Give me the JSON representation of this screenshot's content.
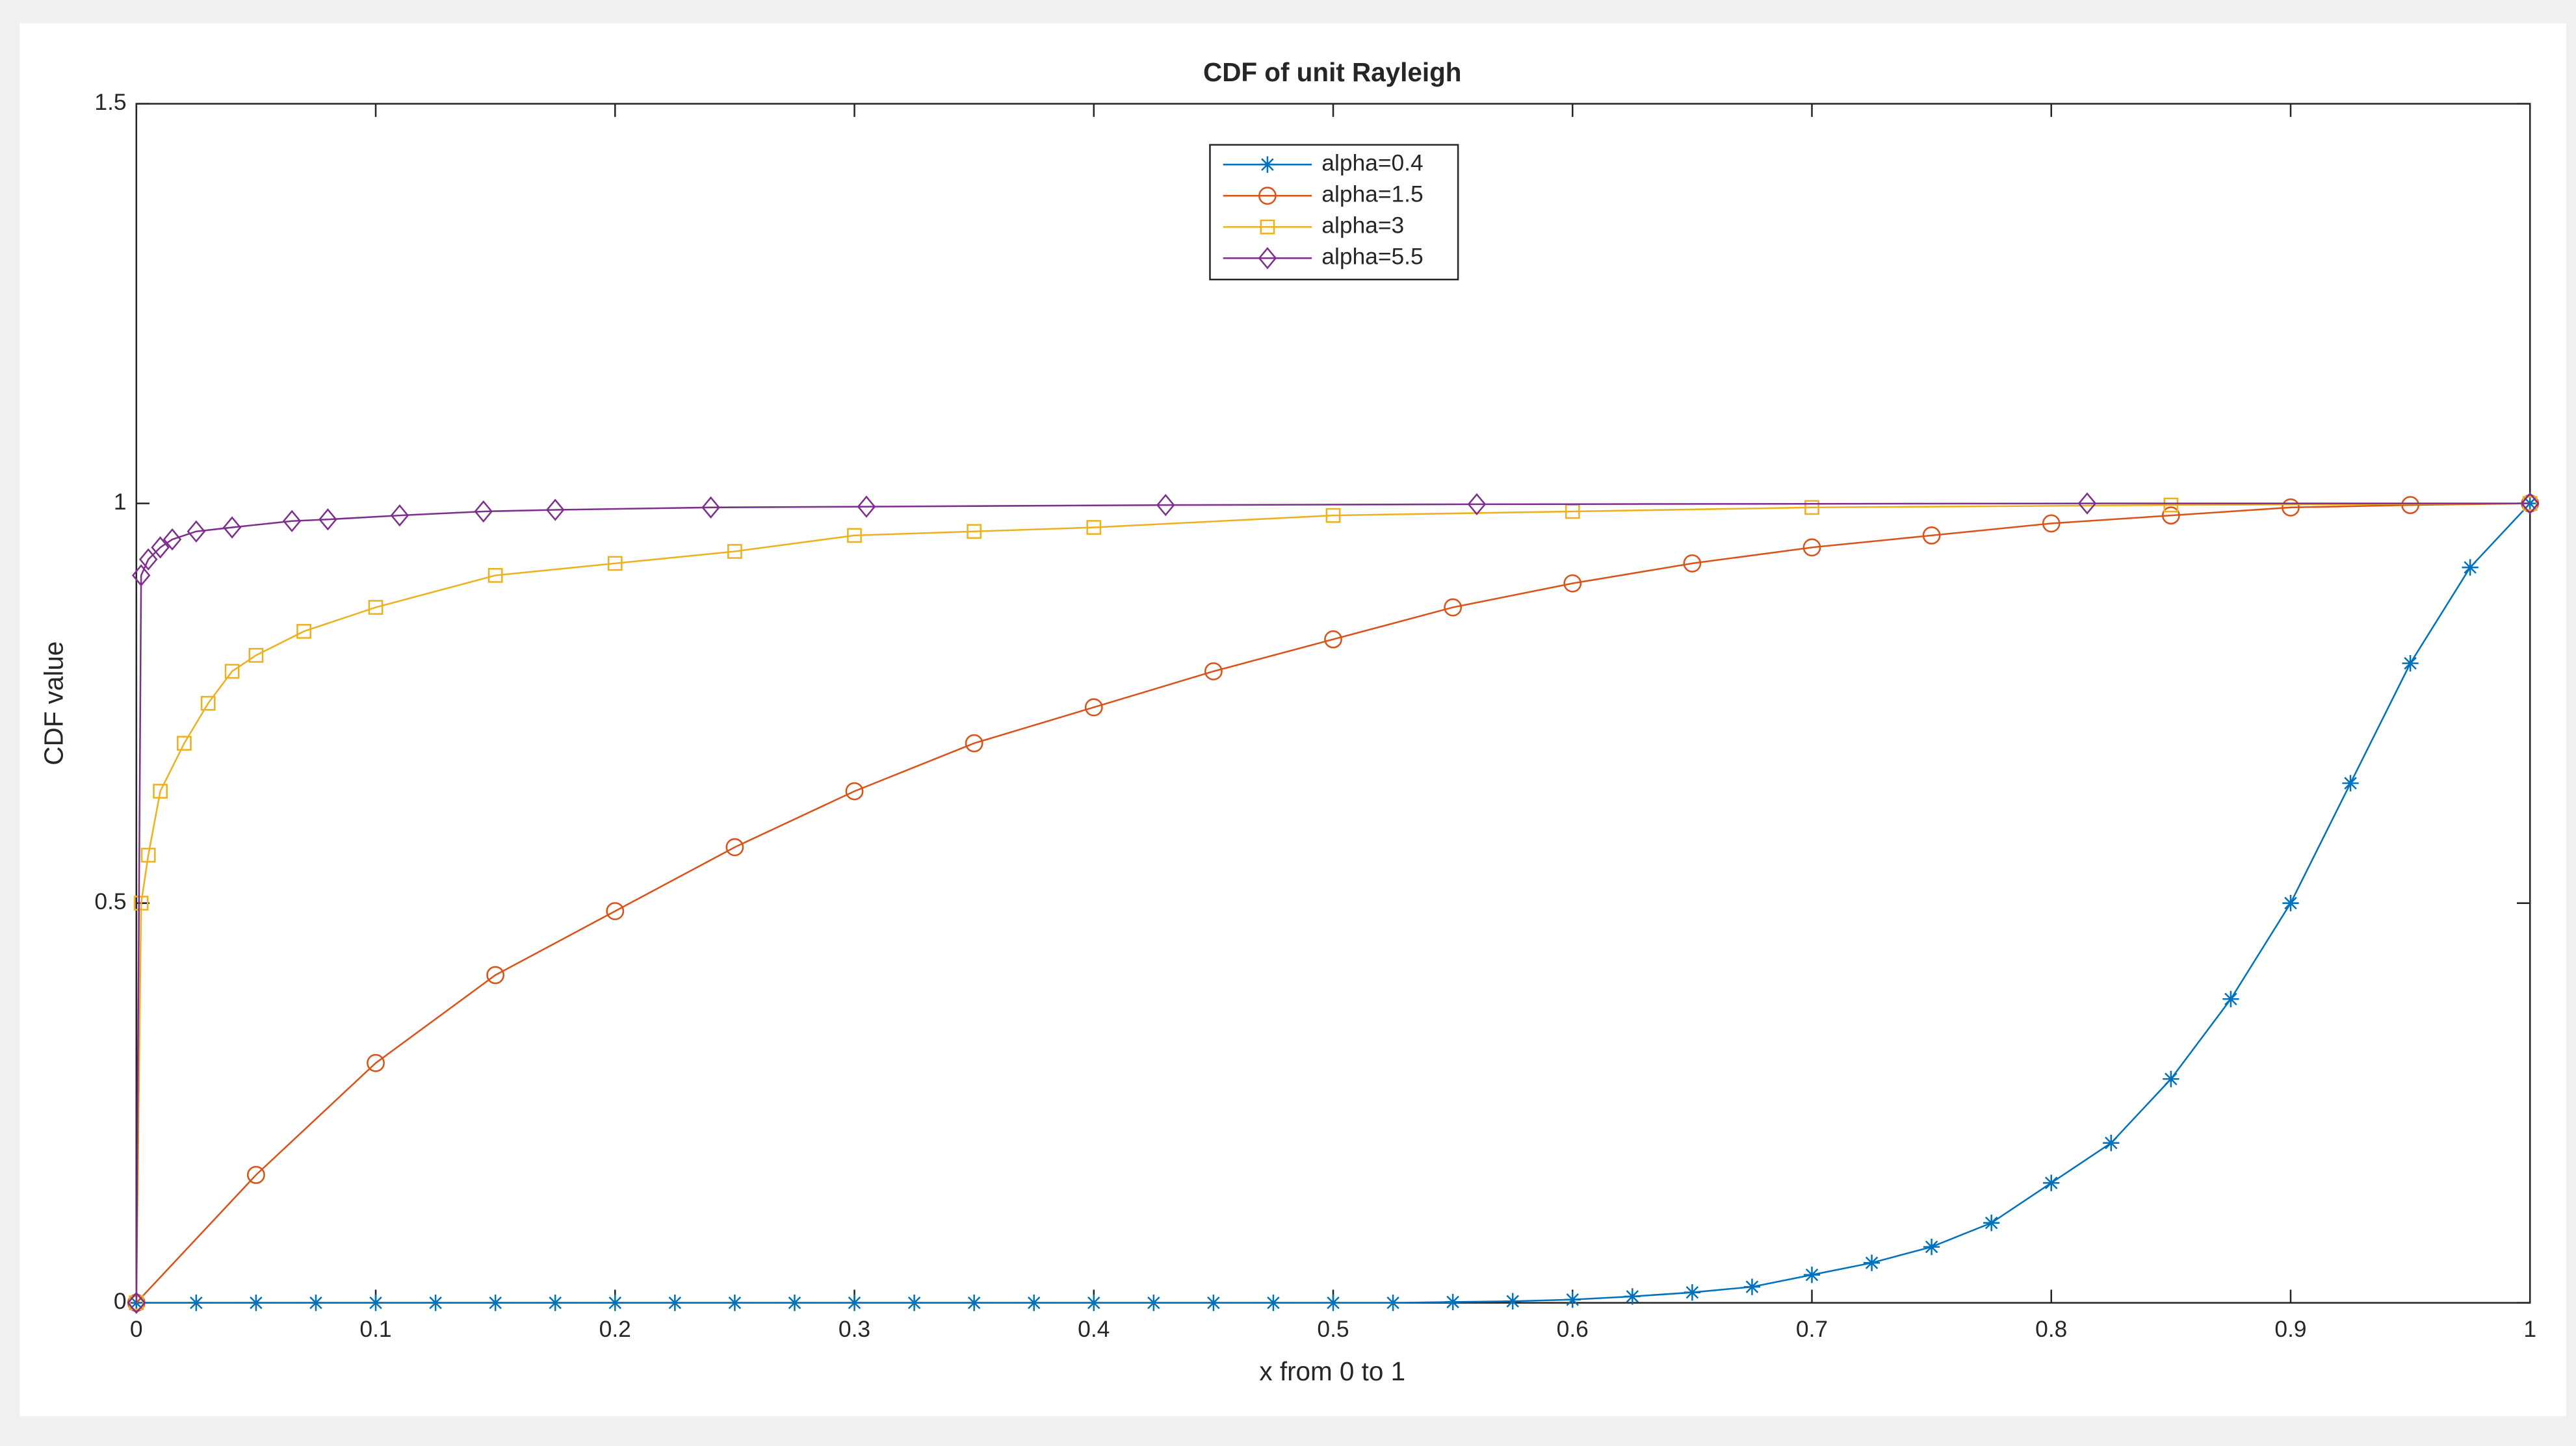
{
  "chart_data": {
    "type": "line",
    "title": "CDF of unit Rayleigh",
    "x_label": "x from 0 to 1",
    "y_label": "CDF value",
    "xlim": [
      0,
      1
    ],
    "ylim": [
      0,
      1.5
    ],
    "xticks": [
      0,
      0.1,
      0.2,
      0.3,
      0.4,
      0.5,
      0.6,
      0.7,
      0.8,
      0.9,
      1
    ],
    "yticks": [
      0,
      0.5,
      1,
      1.5
    ],
    "legend": "north",
    "grid": false,
    "series": [
      {
        "name": "alpha=0.4",
        "color": "#0072bd",
        "marker": "star",
        "x": [
          0,
          0.025,
          0.05,
          0.075,
          0.1,
          0.125,
          0.15,
          0.175,
          0.2,
          0.225,
          0.25,
          0.275,
          0.3,
          0.325,
          0.35,
          0.375,
          0.4,
          0.425,
          0.45,
          0.475,
          0.5,
          0.525,
          0.55,
          0.575,
          0.6,
          0.625,
          0.65,
          0.675,
          0.7,
          0.725,
          0.75,
          0.775,
          0.8,
          0.825,
          0.85,
          0.875,
          0.9,
          0.925,
          0.95,
          0.975,
          1
        ],
        "values": [
          0,
          0,
          0,
          0,
          0,
          0,
          0,
          0,
          0,
          0,
          0,
          0,
          0,
          0,
          0,
          0,
          0,
          0,
          0,
          0,
          0,
          0,
          0.001,
          0.002,
          0.004,
          0.008,
          0.013,
          0.02,
          0.035,
          0.05,
          0.07,
          0.1,
          0.15,
          0.2,
          0.28,
          0.38,
          0.5,
          0.65,
          0.8,
          0.92,
          1
        ]
      },
      {
        "name": "alpha=1.5",
        "color": "#d95319",
        "marker": "circle",
        "x": [
          0,
          0.05,
          0.1,
          0.15,
          0.2,
          0.25,
          0.3,
          0.35,
          0.4,
          0.45,
          0.5,
          0.55,
          0.6,
          0.65,
          0.7,
          0.75,
          0.8,
          0.85,
          0.9,
          0.95,
          1
        ],
        "values": [
          0,
          0.16,
          0.3,
          0.41,
          0.49,
          0.57,
          0.64,
          0.7,
          0.745,
          0.79,
          0.83,
          0.87,
          0.9,
          0.925,
          0.945,
          0.96,
          0.975,
          0.985,
          0.995,
          0.998,
          1
        ]
      },
      {
        "name": "alpha=3",
        "color": "#edb120",
        "marker": "square",
        "x": [
          0,
          0.002,
          0.005,
          0.01,
          0.02,
          0.03,
          0.04,
          0.05,
          0.07,
          0.1,
          0.15,
          0.2,
          0.25,
          0.3,
          0.35,
          0.4,
          0.5,
          0.6,
          0.7,
          0.85,
          1
        ],
        "values": [
          0,
          0.5,
          0.56,
          0.64,
          0.7,
          0.75,
          0.79,
          0.81,
          0.84,
          0.87,
          0.91,
          0.925,
          0.94,
          0.96,
          0.965,
          0.97,
          0.985,
          0.99,
          0.995,
          0.998,
          1
        ]
      },
      {
        "name": "alpha=5.5",
        "color": "#7e2f8e",
        "marker": "diamond",
        "x": [
          0,
          0.002,
          0.005,
          0.01,
          0.015,
          0.025,
          0.04,
          0.065,
          0.08,
          0.11,
          0.145,
          0.175,
          0.24,
          0.305,
          0.43,
          0.56,
          0.815,
          1
        ],
        "values": [
          0,
          0.91,
          0.93,
          0.945,
          0.955,
          0.965,
          0.97,
          0.978,
          0.98,
          0.985,
          0.99,
          0.992,
          0.995,
          0.996,
          0.998,
          0.999,
          1,
          1
        ]
      }
    ]
  }
}
